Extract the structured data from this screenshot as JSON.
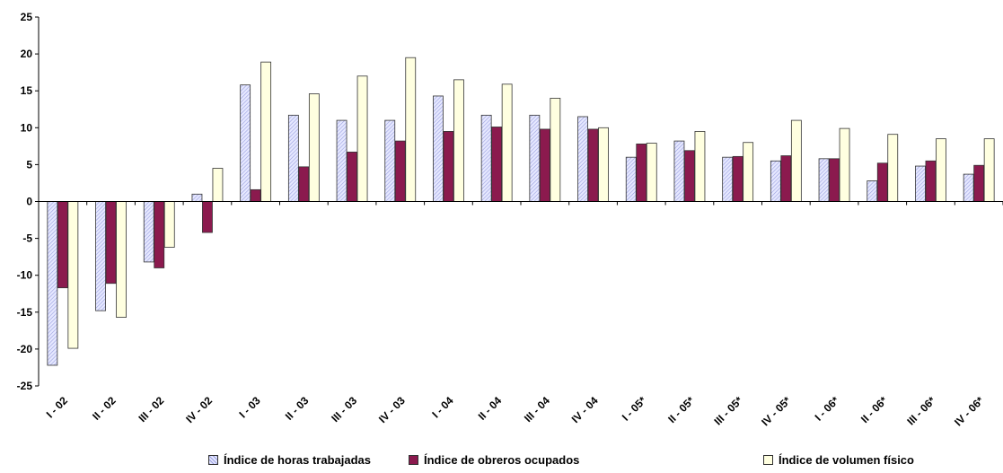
{
  "chart_data": {
    "type": "bar",
    "categories": [
      "I - 02",
      "II - 02",
      "III - 02",
      "IV - 02",
      "I - 03",
      "II - 03",
      "III - 03",
      "IV - 03",
      "I - 04",
      "II - 04",
      "III - 04",
      "IV - 04",
      "I - 05*",
      "II - 05*",
      "III - 05*",
      "IV - 05*",
      "I - 06*",
      "II - 06*",
      "III - 06*",
      "IV - 06*"
    ],
    "series": [
      {
        "name": "Índice de horas trabajadas",
        "color": "#c8cbf0",
        "values": [
          -22.2,
          -14.8,
          -8.2,
          1.0,
          15.8,
          11.7,
          11.0,
          11.0,
          14.3,
          11.7,
          11.7,
          11.5,
          6.0,
          8.2,
          6.0,
          5.5,
          5.8,
          2.8,
          4.8,
          3.7
        ]
      },
      {
        "name": "Índice de obreros ocupados",
        "color": "#8b1a4e",
        "values": [
          -11.7,
          -11.1,
          -9.0,
          -4.2,
          1.6,
          4.7,
          6.7,
          8.2,
          9.5,
          10.1,
          9.8,
          9.8,
          7.8,
          6.9,
          6.1,
          6.2,
          5.8,
          5.2,
          5.5,
          4.9
        ]
      },
      {
        "name": "Índice de volumen físico",
        "color": "#ffffe0",
        "values": [
          -19.9,
          -15.7,
          -6.2,
          4.5,
          18.9,
          14.6,
          17.0,
          19.5,
          16.5,
          15.9,
          14.0,
          10.0,
          7.9,
          9.5,
          8.0,
          11.0,
          9.9,
          9.1,
          8.5,
          8.5
        ]
      }
    ],
    "yticks": [
      "25",
      "20",
      "15",
      "10",
      "5",
      "0",
      "-5",
      "-10",
      "-15",
      "-20",
      "-25"
    ],
    "ylim": [
      -25,
      25
    ],
    "legend_position": "bottom"
  }
}
